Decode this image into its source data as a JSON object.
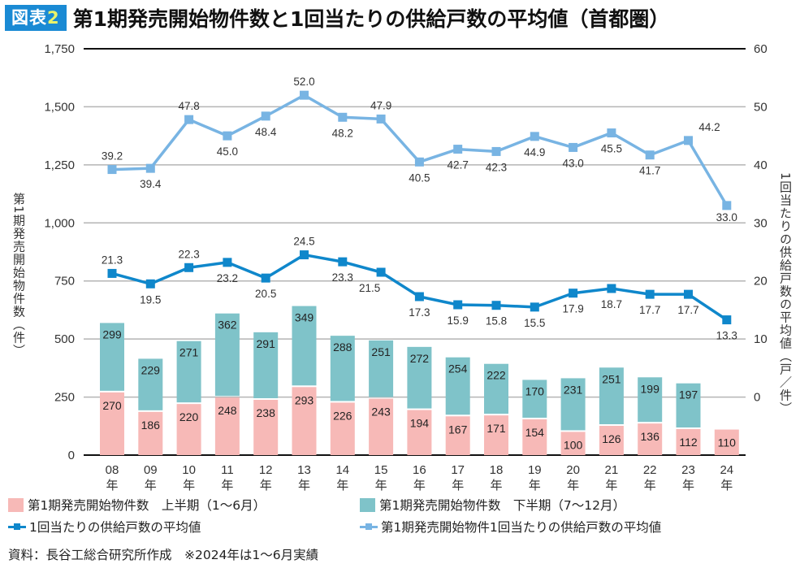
{
  "header": {
    "badge_prefix": "図表",
    "badge_number": "2",
    "title": "第1期発売開始物件数と1回当たりの供給戸数の平均値（首都圏）"
  },
  "colors": {
    "badge_bg": "#1a8ad4",
    "first_half": "#f7b9b7",
    "second_half": "#7fc3c9",
    "avg_dark_line": "#0f87cb",
    "avg_light_line": "#78b4e3"
  },
  "chart_data": {
    "type": "bar",
    "title": "第1期発売開始物件数と1回当たりの供給戸数の平均値（首都圏）",
    "categories": [
      "08\n年",
      "09\n年",
      "10\n年",
      "11\n年",
      "12\n年",
      "13\n年",
      "14\n年",
      "15\n年",
      "16\n年",
      "17\n年",
      "18\n年",
      "19\n年",
      "20\n年",
      "21\n年",
      "22\n年",
      "23\n年",
      "24\n年"
    ],
    "category_labels": [
      {
        "year": "08",
        "unit": "年"
      },
      {
        "year": "09",
        "unit": "年"
      },
      {
        "year": "10",
        "unit": "年"
      },
      {
        "year": "11",
        "unit": "年"
      },
      {
        "year": "12",
        "unit": "年"
      },
      {
        "year": "13",
        "unit": "年"
      },
      {
        "year": "14",
        "unit": "年"
      },
      {
        "year": "15",
        "unit": "年"
      },
      {
        "year": "16",
        "unit": "年"
      },
      {
        "year": "17",
        "unit": "年"
      },
      {
        "year": "18",
        "unit": "年"
      },
      {
        "year": "19",
        "unit": "年"
      },
      {
        "year": "20",
        "unit": "年"
      },
      {
        "year": "21",
        "unit": "年"
      },
      {
        "year": "22",
        "unit": "年"
      },
      {
        "year": "23",
        "unit": "年"
      },
      {
        "year": "24",
        "unit": "年"
      }
    ],
    "series": [
      {
        "name": "第1期発売開始物件数　上半期（1〜6月）",
        "kind": "stacked-bar",
        "axis": "left",
        "values": [
          270,
          186,
          220,
          248,
          238,
          293,
          226,
          243,
          194,
          167,
          171,
          154,
          100,
          126,
          136,
          112,
          110
        ]
      },
      {
        "name": "第1期発売開始物件数　下半期（7〜12月）",
        "kind": "stacked-bar",
        "axis": "left",
        "values": [
          299,
          229,
          271,
          362,
          291,
          349,
          288,
          251,
          272,
          254,
          222,
          170,
          231,
          251,
          199,
          197,
          null
        ]
      },
      {
        "name": "1回当たりの供給戸数の平均値",
        "kind": "line",
        "axis": "right",
        "values": [
          21.3,
          19.5,
          22.3,
          23.2,
          20.5,
          24.5,
          23.3,
          21.5,
          17.3,
          15.9,
          15.8,
          15.5,
          17.9,
          18.7,
          17.7,
          17.7,
          13.3
        ]
      },
      {
        "name": "第1期発売開始物件1回当たりの供給戸数の平均値",
        "kind": "line",
        "axis": "right",
        "values": [
          39.2,
          39.4,
          47.8,
          45.0,
          48.4,
          52.0,
          48.2,
          47.9,
          40.5,
          42.7,
          42.3,
          44.9,
          43.0,
          45.5,
          41.7,
          44.2,
          33.0
        ]
      }
    ],
    "left_axis": {
      "label": "第1期発売開始物件数（件）",
      "range": [
        0,
        1750
      ],
      "ticks": [
        "0",
        "250",
        "500",
        "750",
        "1,000",
        "1,250",
        "1,500",
        "1,750"
      ],
      "tick_values": [
        0,
        250,
        500,
        750,
        1000,
        1250,
        1500,
        1750
      ]
    },
    "right_axis": {
      "label": "1回当たりの供給戸数の平均値（戸／件）",
      "range": [
        -10,
        60
      ],
      "ticks": [
        "0",
        "10",
        "20",
        "30",
        "40",
        "50",
        "60"
      ],
      "tick_values": [
        0,
        10,
        20,
        30,
        40,
        50,
        60
      ]
    },
    "grid": true,
    "legend": "bottom"
  },
  "legend": {
    "items": [
      {
        "label": "第1期発売開始物件数　上半期（1〜6月）"
      },
      {
        "label": "第1期発売開始物件数　下半期（7〜12月）"
      },
      {
        "label": "1回当たりの供給戸数の平均値"
      },
      {
        "label": "第1期発売開始物件1回当たりの供給戸数の平均値"
      }
    ]
  },
  "footer": {
    "source": "資料：長谷工総合研究所作成　※2024年は1〜6月実績"
  }
}
